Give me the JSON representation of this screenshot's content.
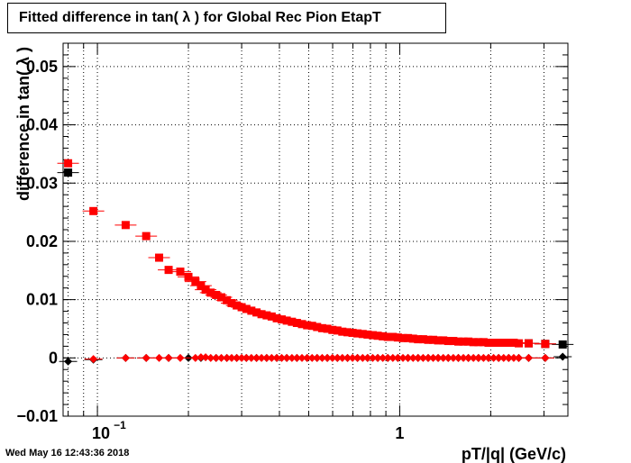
{
  "title": "Fitted difference in tan( λ ) for Global Rec Pion EtapT",
  "footer_date": "Wed May 16 12:43:36 2018",
  "chart_data": {
    "type": "scatter",
    "title": "Fitted difference in tan( λ ) for Global Rec Pion EtapT",
    "xlabel": "pT/|q| (GeV/c)",
    "ylabel": "difference in tan( λ )",
    "x_scale": "log",
    "xlim": [
      0.077,
      3.6
    ],
    "ylim": [
      -0.01,
      0.054
    ],
    "grid": true,
    "x_tick_labels": [
      {
        "value": 0.1,
        "base": "10",
        "exp": "−1"
      },
      {
        "value": 1,
        "label": "1"
      }
    ],
    "y_ticks": [
      -0.01,
      0,
      0.01,
      0.02,
      0.03,
      0.04,
      0.05
    ],
    "y_tick_labels": [
      "−0.01",
      "0",
      "0.01",
      "0.02",
      "0.03",
      "0.04",
      "0.05"
    ],
    "series": [
      {
        "marker": "square",
        "color": "#000000",
        "points": [
          [
            0.08,
            0.0318
          ],
          [
            2.67,
            0.0025
          ],
          [
            3.03,
            0.0024
          ],
          [
            3.46,
            0.0023
          ]
        ]
      },
      {
        "marker": "square",
        "color": "#ff0000",
        "points": [
          [
            0.08,
            0.0334
          ],
          [
            0.097,
            0.0252
          ],
          [
            0.124,
            0.0228
          ],
          [
            0.145,
            0.0209
          ],
          [
            0.16,
            0.0172
          ],
          [
            0.172,
            0.0151
          ],
          [
            0.188,
            0.0148
          ],
          [
            0.2,
            0.0139
          ],
          [
            0.211,
            0.0131
          ],
          [
            0.22,
            0.0124
          ],
          [
            0.228,
            0.0117
          ],
          [
            0.237,
            0.0112
          ],
          [
            0.247,
            0.0108
          ],
          [
            0.257,
            0.0104
          ],
          [
            0.268,
            0.0099
          ],
          [
            0.278,
            0.0094
          ],
          [
            0.289,
            0.009
          ],
          [
            0.3,
            0.0087
          ],
          [
            0.311,
            0.0084
          ],
          [
            0.323,
            0.0081
          ],
          [
            0.336,
            0.0078
          ],
          [
            0.349,
            0.0075
          ],
          [
            0.363,
            0.0073
          ],
          [
            0.377,
            0.0071
          ],
          [
            0.392,
            0.0068
          ],
          [
            0.407,
            0.0066
          ],
          [
            0.423,
            0.0064
          ],
          [
            0.44,
            0.0062
          ],
          [
            0.457,
            0.006
          ],
          [
            0.475,
            0.0058
          ],
          [
            0.494,
            0.0056
          ],
          [
            0.513,
            0.0055
          ],
          [
            0.533,
            0.0053
          ],
          [
            0.554,
            0.0051
          ],
          [
            0.576,
            0.005
          ],
          [
            0.599,
            0.0048
          ],
          [
            0.622,
            0.0047
          ],
          [
            0.646,
            0.0045
          ],
          [
            0.672,
            0.0044
          ],
          [
            0.698,
            0.0043
          ],
          [
            0.725,
            0.0042
          ],
          [
            0.754,
            0.0041
          ],
          [
            0.783,
            0.004
          ],
          [
            0.814,
            0.0039
          ],
          [
            0.846,
            0.0038
          ],
          [
            0.879,
            0.0037
          ],
          [
            0.913,
            0.0036
          ],
          [
            0.949,
            0.0036
          ],
          [
            0.986,
            0.0035
          ],
          [
            1.025,
            0.0034
          ],
          [
            1.065,
            0.0034
          ],
          [
            1.107,
            0.0033
          ],
          [
            1.15,
            0.0032
          ],
          [
            1.195,
            0.0032
          ],
          [
            1.242,
            0.0031
          ],
          [
            1.29,
            0.0031
          ],
          [
            1.34,
            0.003
          ],
          [
            1.393,
            0.003
          ],
          [
            1.447,
            0.0029
          ],
          [
            1.504,
            0.0029
          ],
          [
            1.563,
            0.0028
          ],
          [
            1.624,
            0.0028
          ],
          [
            1.687,
            0.0028
          ],
          [
            1.753,
            0.0027
          ],
          [
            1.822,
            0.0027
          ],
          [
            1.893,
            0.0027
          ],
          [
            1.967,
            0.0026
          ],
          [
            2.044,
            0.0026
          ],
          [
            2.124,
            0.0026
          ],
          [
            2.207,
            0.0026
          ],
          [
            2.293,
            0.0026
          ],
          [
            2.383,
            0.0026
          ],
          [
            2.476,
            0.0025
          ],
          [
            2.67,
            0.0025
          ],
          [
            3.03,
            0.0024
          ]
        ]
      },
      {
        "marker": "diamond",
        "color": "#000000",
        "points": [
          [
            0.08,
            -0.0006
          ],
          [
            0.097,
            -0.0003
          ],
          [
            0.124,
            0.0
          ],
          [
            0.145,
            0.0
          ],
          [
            0.172,
            0.0
          ],
          [
            0.2,
            0.0
          ],
          [
            0.22,
            0.0
          ],
          [
            0.247,
            0.0
          ],
          [
            0.268,
            0.0
          ],
          [
            0.289,
            0.0
          ],
          [
            0.311,
            0.0
          ],
          [
            0.336,
            0.0
          ],
          [
            0.363,
            0.0
          ],
          [
            0.392,
            0.0
          ],
          [
            0.423,
            0.0
          ],
          [
            0.457,
            0.0
          ],
          [
            0.494,
            0.0
          ],
          [
            0.533,
            0.0
          ],
          [
            0.576,
            0.0
          ],
          [
            0.622,
            0.0
          ],
          [
            0.672,
            0.0
          ],
          [
            0.725,
            0.0
          ],
          [
            0.783,
            0.0
          ],
          [
            0.846,
            0.0
          ],
          [
            0.913,
            0.0
          ],
          [
            0.986,
            0.0
          ],
          [
            1.065,
            0.0
          ],
          [
            1.15,
            0.0
          ],
          [
            1.242,
            0.0
          ],
          [
            1.34,
            0.0
          ],
          [
            1.447,
            0.0
          ],
          [
            1.563,
            0.0
          ],
          [
            1.687,
            0.0
          ],
          [
            1.822,
            0.0
          ],
          [
            1.967,
            0.0
          ],
          [
            2.124,
            0.0
          ],
          [
            2.293,
            0.0
          ],
          [
            2.476,
            0.0
          ],
          [
            2.67,
            0.0
          ],
          [
            3.03,
            0.0
          ],
          [
            3.46,
            0.0002
          ]
        ]
      },
      {
        "marker": "diamond",
        "color": "#ff0000",
        "points": [
          [
            0.097,
            -0.0002
          ],
          [
            0.124,
            0.0
          ],
          [
            0.145,
            0.0
          ],
          [
            0.16,
            0.0
          ],
          [
            0.172,
            0.0
          ],
          [
            0.188,
            0.0
          ],
          [
            0.211,
            0.0
          ],
          [
            0.22,
            0.0001
          ],
          [
            0.228,
            0.0001
          ],
          [
            0.237,
            0.0
          ],
          [
            0.247,
            0.0
          ],
          [
            0.257,
            0.0
          ],
          [
            0.268,
            0.0
          ],
          [
            0.278,
            0.0
          ],
          [
            0.289,
            0.0
          ],
          [
            0.3,
            0.0
          ],
          [
            0.311,
            0.0
          ],
          [
            0.323,
            0.0
          ],
          [
            0.336,
            0.0
          ],
          [
            0.349,
            0.0
          ],
          [
            0.363,
            0.0
          ],
          [
            0.377,
            0.0
          ],
          [
            0.392,
            0.0
          ],
          [
            0.407,
            0.0
          ],
          [
            0.423,
            0.0
          ],
          [
            0.44,
            0.0
          ],
          [
            0.457,
            0.0
          ],
          [
            0.475,
            0.0
          ],
          [
            0.494,
            0.0
          ],
          [
            0.513,
            0.0
          ],
          [
            0.533,
            0.0
          ],
          [
            0.554,
            0.0
          ],
          [
            0.576,
            0.0
          ],
          [
            0.599,
            0.0
          ],
          [
            0.622,
            0.0
          ],
          [
            0.646,
            0.0
          ],
          [
            0.672,
            0.0
          ],
          [
            0.698,
            0.0
          ],
          [
            0.725,
            0.0
          ],
          [
            0.754,
            0.0
          ],
          [
            0.783,
            0.0
          ],
          [
            0.814,
            0.0
          ],
          [
            0.846,
            0.0
          ],
          [
            0.879,
            0.0
          ],
          [
            0.913,
            0.0
          ],
          [
            0.949,
            0.0
          ],
          [
            0.986,
            0.0
          ],
          [
            1.025,
            0.0
          ],
          [
            1.065,
            0.0
          ],
          [
            1.107,
            0.0
          ],
          [
            1.15,
            0.0
          ],
          [
            1.195,
            0.0
          ],
          [
            1.242,
            0.0
          ],
          [
            1.29,
            0.0
          ],
          [
            1.34,
            0.0
          ],
          [
            1.393,
            0.0
          ],
          [
            1.447,
            0.0
          ],
          [
            1.504,
            0.0
          ],
          [
            1.563,
            0.0
          ],
          [
            1.624,
            0.0
          ],
          [
            1.687,
            0.0
          ],
          [
            1.753,
            0.0
          ],
          [
            1.822,
            0.0
          ],
          [
            1.893,
            0.0
          ],
          [
            1.967,
            0.0
          ],
          [
            2.044,
            0.0
          ],
          [
            2.124,
            0.0
          ],
          [
            2.207,
            0.0
          ],
          [
            2.293,
            0.0
          ],
          [
            2.383,
            0.0
          ],
          [
            2.476,
            0.0
          ],
          [
            2.67,
            0.0
          ],
          [
            3.03,
            0.0
          ]
        ]
      }
    ]
  }
}
